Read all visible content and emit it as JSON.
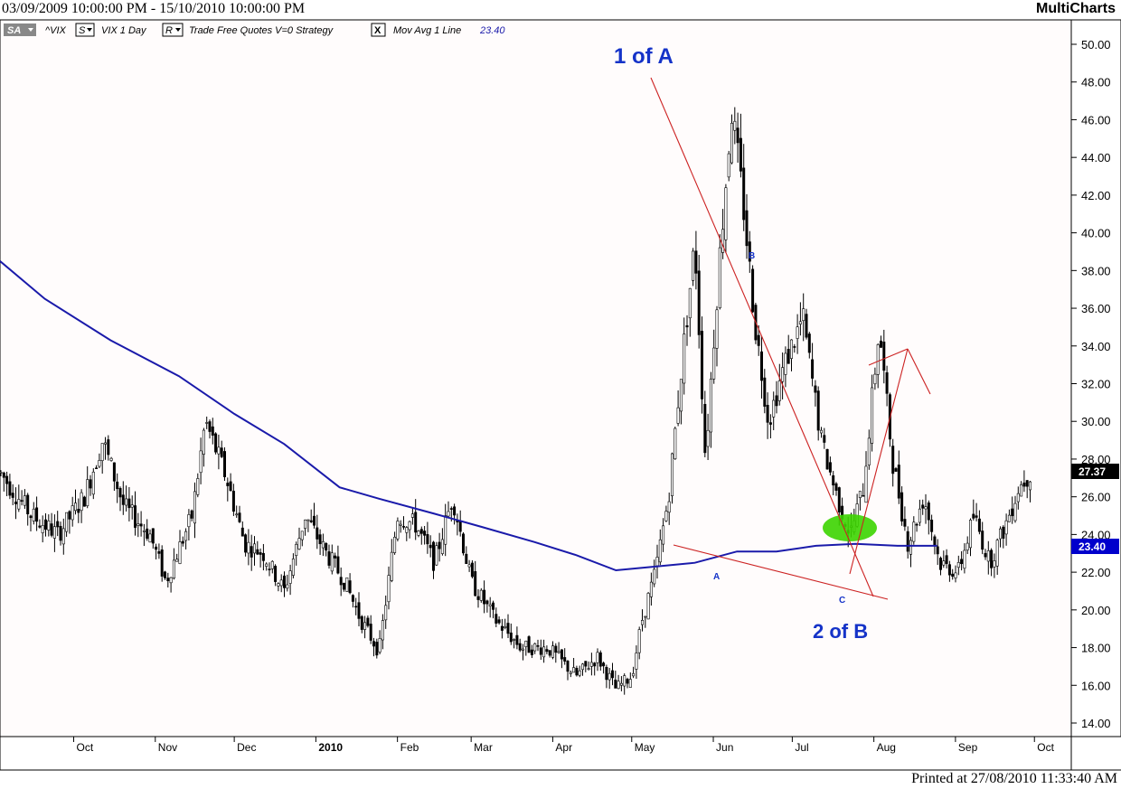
{
  "header": {
    "date_range": "03/09/2009 10:00:00 PM - 15/10/2010 10:00:00 PM",
    "brand": "MultiCharts"
  },
  "footer": {
    "printed": "Printed at 27/08/2010 11:33:40 AM"
  },
  "toolbar": {
    "sa_button": "SA",
    "symbol": "^VIX",
    "s_button": "S",
    "symbol_desc": "VIX  1 Day",
    "r_button": "R",
    "trade_label": "Trade  Free Quotes  V=0  Strategy",
    "x_button": "X",
    "study_label": "Mov Avg 1 Line",
    "study_value": "23.40"
  },
  "annotations": {
    "wave_1a": "1 of A",
    "wave_2b": "2 of B",
    "point_b": "B",
    "point_a": "A",
    "point_c": "C"
  },
  "colors": {
    "background": "#fffcfc",
    "price_bars": "#000000",
    "moving_average": "#1a1aaa",
    "trendlines": "#cc2222",
    "annotation_blue": "#1533c8",
    "highlight": "#3cd400",
    "last_price_bg": "#000000",
    "ma_price_bg": "#0000cc"
  },
  "chart_data": {
    "type": "candlestick",
    "y_axis": {
      "ylim": [
        13.2,
        51.0
      ],
      "tick_labels": [
        "14.00",
        "16.00",
        "18.00",
        "20.00",
        "22.00",
        "24.00",
        "26.00",
        "28.00",
        "30.00",
        "32.00",
        "34.00",
        "36.00",
        "38.00",
        "40.00",
        "42.00",
        "44.00",
        "46.00",
        "48.00",
        "50.00"
      ],
      "last_price": "27.37",
      "ma_price": "23.40"
    },
    "x_axis": {
      "month_labels": [
        "Oct",
        "Nov",
        "Dec",
        "2010",
        "Feb",
        "Mar",
        "Apr",
        "May",
        "Jun",
        "Jul",
        "Aug",
        "Sep",
        "Oct"
      ]
    },
    "series": [
      {
        "name": "Mov Avg 1 Line",
        "type": "line",
        "points": [
          [
            "2009-09-03",
            38.5
          ],
          [
            "2009-09-20",
            36.5
          ],
          [
            "2009-10-15",
            34.3
          ],
          [
            "2009-11-10",
            32.4
          ],
          [
            "2009-12-01",
            30.4
          ],
          [
            "2009-12-20",
            28.8
          ],
          [
            "2010-01-10",
            26.5
          ],
          [
            "2010-01-25",
            25.9
          ],
          [
            "2010-02-15",
            25.1
          ],
          [
            "2010-03-05",
            24.4
          ],
          [
            "2010-03-25",
            23.6
          ],
          [
            "2010-04-10",
            22.9
          ],
          [
            "2010-04-25",
            22.1
          ],
          [
            "2010-05-10",
            22.3
          ],
          [
            "2010-05-25",
            22.5
          ],
          [
            "2010-06-10",
            23.1
          ],
          [
            "2010-06-25",
            23.1
          ],
          [
            "2010-07-10",
            23.4
          ],
          [
            "2010-07-25",
            23.5
          ],
          [
            "2010-08-10",
            23.4
          ],
          [
            "2010-08-25",
            23.4
          ]
        ]
      },
      {
        "name": "^VIX",
        "type": "candlestick",
        "path_points": [
          [
            "2009-09-03",
            27.3
          ],
          [
            "2009-09-15",
            25.0
          ],
          [
            "2009-09-25",
            24.0
          ],
          [
            "2009-10-05",
            26.0
          ],
          [
            "2009-10-12",
            29.0
          ],
          [
            "2009-10-20",
            25.5
          ],
          [
            "2009-10-30",
            24.0
          ],
          [
            "2009-11-05",
            21.5
          ],
          [
            "2009-11-15",
            25.0
          ],
          [
            "2009-11-20",
            30.0
          ],
          [
            "2009-11-28",
            27.0
          ],
          [
            "2009-12-05",
            23.5
          ],
          [
            "2009-12-12",
            23.0
          ],
          [
            "2009-12-20",
            21.0
          ],
          [
            "2009-12-28",
            25.0
          ],
          [
            "2010-01-05",
            23.0
          ],
          [
            "2010-01-12",
            21.5
          ],
          [
            "2010-01-18",
            19.5
          ],
          [
            "2010-01-25",
            17.8
          ],
          [
            "2010-02-01",
            25.0
          ],
          [
            "2010-02-08",
            24.5
          ],
          [
            "2010-02-15",
            22.5
          ],
          [
            "2010-02-22",
            26.0
          ],
          [
            "2010-03-01",
            21.5
          ],
          [
            "2010-03-10",
            19.5
          ],
          [
            "2010-03-20",
            18.0
          ],
          [
            "2010-03-30",
            18.0
          ],
          [
            "2010-04-10",
            16.5
          ],
          [
            "2010-04-18",
            17.5
          ],
          [
            "2010-04-25",
            15.8
          ],
          [
            "2010-05-01",
            16.5
          ],
          [
            "2010-05-05",
            19.5
          ],
          [
            "2010-05-10",
            22.0
          ],
          [
            "2010-05-15",
            26.0
          ],
          [
            "2010-05-20",
            33.0
          ],
          [
            "2010-05-25",
            39.5
          ],
          [
            "2010-05-29",
            28.0
          ],
          [
            "2010-06-03",
            38.0
          ],
          [
            "2010-06-08",
            46.5
          ],
          [
            "2010-06-12",
            42.0
          ],
          [
            "2010-06-17",
            35.0
          ],
          [
            "2010-06-22",
            30.0
          ],
          [
            "2010-06-28",
            33.0
          ],
          [
            "2010-07-05",
            35.5
          ],
          [
            "2010-07-12",
            29.0
          ],
          [
            "2010-07-18",
            26.0
          ],
          [
            "2010-07-23",
            24.0
          ],
          [
            "2010-07-28",
            26.5
          ],
          [
            "2010-08-03",
            35.0
          ],
          [
            "2010-08-08",
            28.0
          ],
          [
            "2010-08-14",
            23.5
          ],
          [
            "2010-08-20",
            26.0
          ],
          [
            "2010-08-26",
            22.5
          ],
          [
            "2010-09-02",
            22.0
          ],
          [
            "2010-09-08",
            25.0
          ],
          [
            "2010-09-14",
            22.5
          ],
          [
            "2010-09-20",
            24.5
          ],
          [
            "2010-09-25",
            26.5
          ],
          [
            "2010-09-30",
            27.4
          ]
        ]
      }
    ],
    "key_levels": {
      "wave_1a_high": 48.2,
      "point_b_high": 37.5,
      "point_a_low": 23.0,
      "point_c_low": 21.5
    }
  }
}
